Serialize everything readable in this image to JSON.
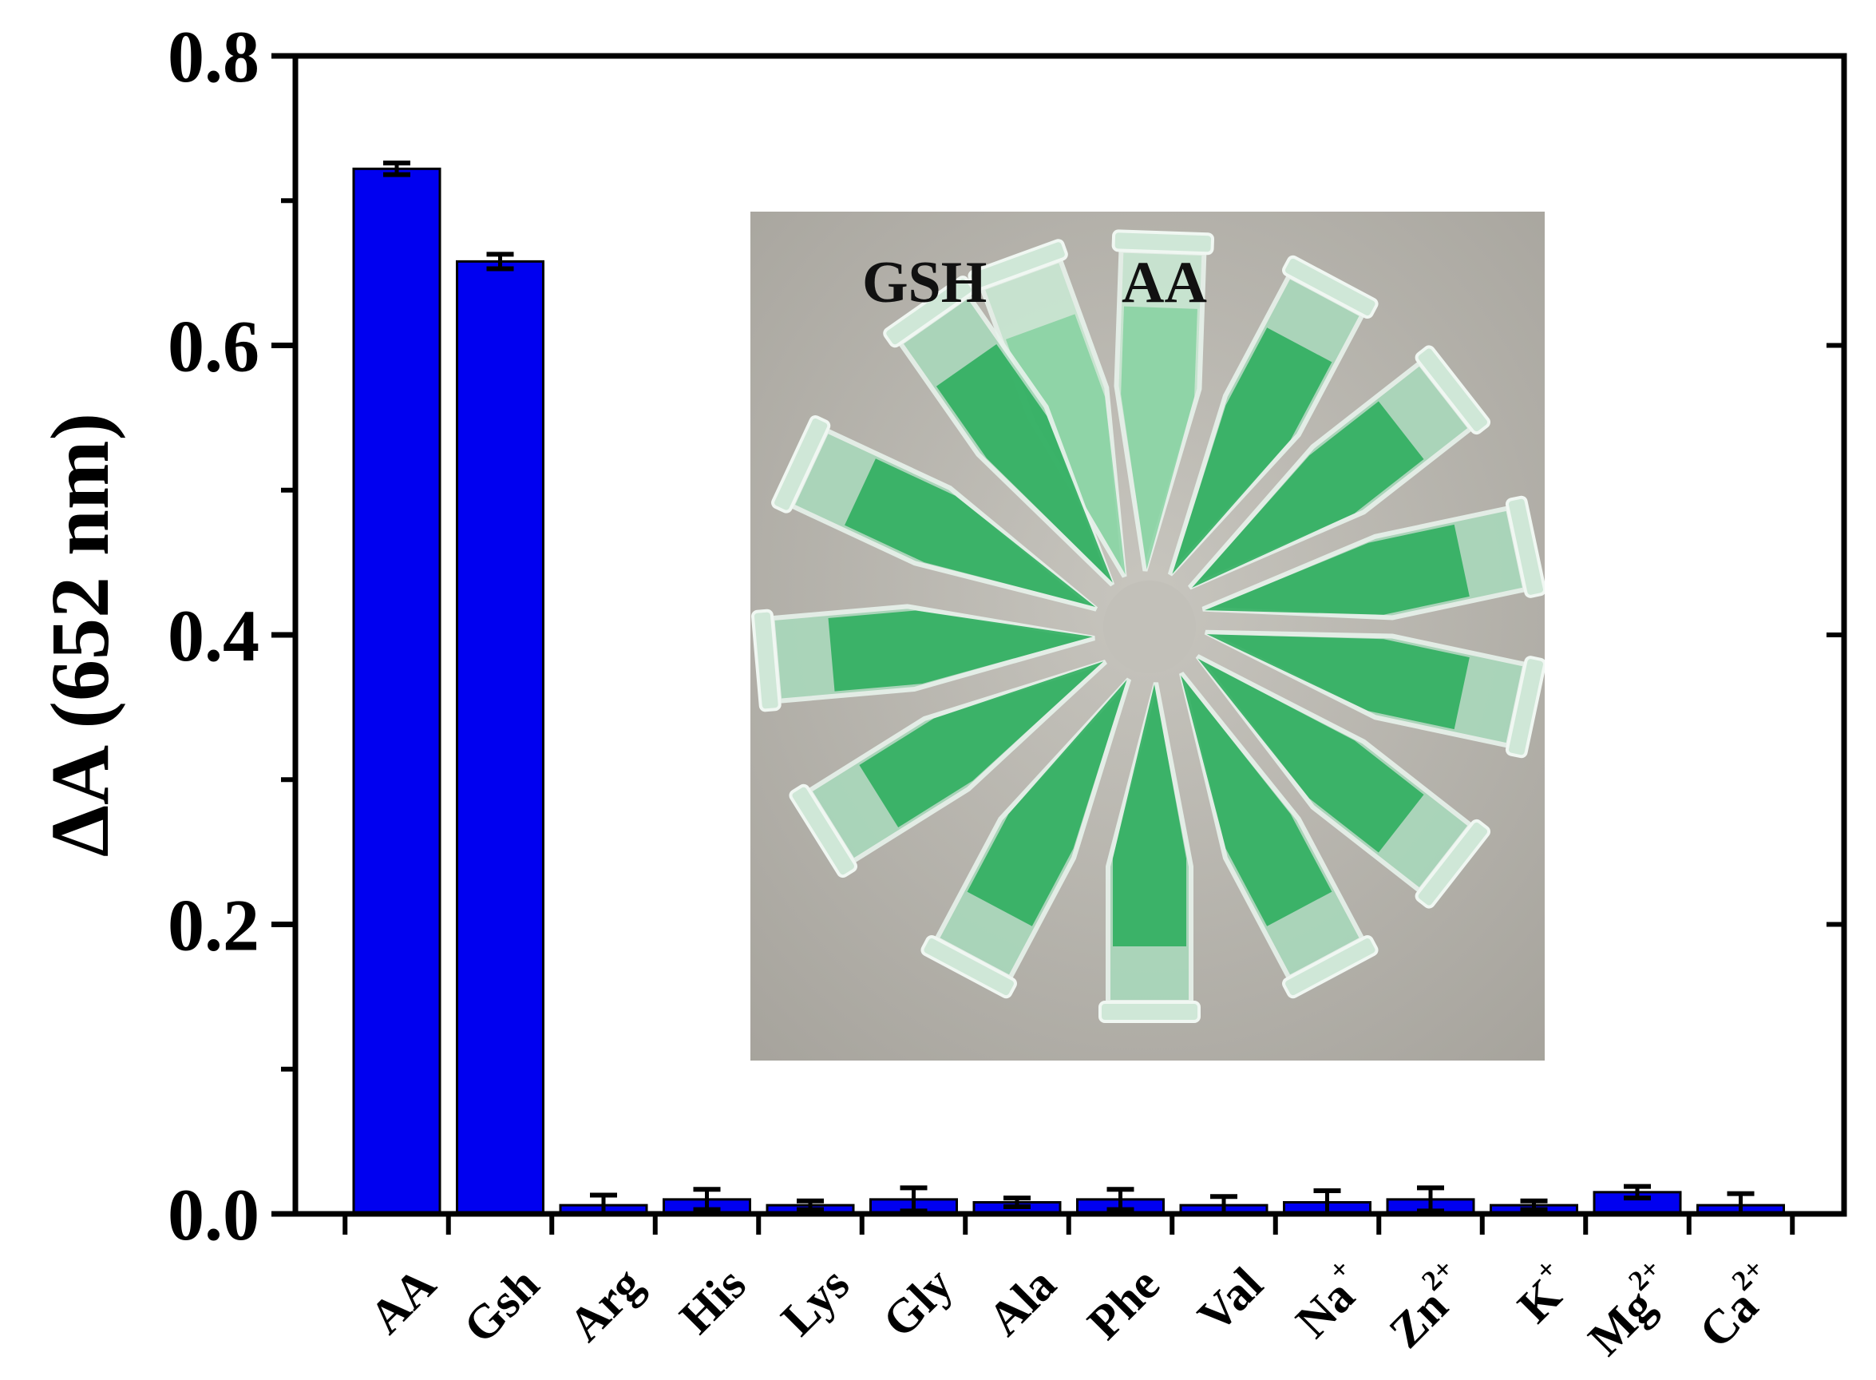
{
  "chart_data": {
    "type": "bar",
    "title": "",
    "xlabel": "",
    "ylabel": "ΔA (652 nm)",
    "ylim": [
      0,
      0.8
    ],
    "yticks": [
      "0.0",
      "0.2",
      "0.4",
      "0.6",
      "0.8"
    ],
    "categories": [
      {
        "base": "AA",
        "sup": ""
      },
      {
        "base": "Gsh",
        "sup": ""
      },
      {
        "base": "Arg",
        "sup": ""
      },
      {
        "base": "His",
        "sup": ""
      },
      {
        "base": "Lys",
        "sup": ""
      },
      {
        "base": "Gly",
        "sup": ""
      },
      {
        "base": "Ala",
        "sup": ""
      },
      {
        "base": "Phe",
        "sup": ""
      },
      {
        "base": "Val",
        "sup": ""
      },
      {
        "base": "Na",
        "sup": "+"
      },
      {
        "base": "Zn",
        "sup": "2+"
      },
      {
        "base": "K",
        "sup": "+"
      },
      {
        "base": "Mg",
        "sup": "2+"
      },
      {
        "base": "Ca",
        "sup": "2+"
      }
    ],
    "values": [
      0.722,
      0.658,
      0.006,
      0.01,
      0.006,
      0.01,
      0.008,
      0.01,
      0.006,
      0.008,
      0.01,
      0.006,
      0.015,
      0.006
    ],
    "errors": [
      0.004,
      0.005,
      0.007,
      0.007,
      0.003,
      0.008,
      0.003,
      0.007,
      0.006,
      0.008,
      0.008,
      0.003,
      0.004,
      0.008
    ],
    "bar_color": "#0000f0",
    "grid": false,
    "legend": "none",
    "inset_photo": {
      "description_icon": "photo-of-tubes",
      "labels": [
        "GSH",
        "AA"
      ],
      "liquid_color": "#2fae5f",
      "background_color": "#b3b0a9"
    }
  }
}
